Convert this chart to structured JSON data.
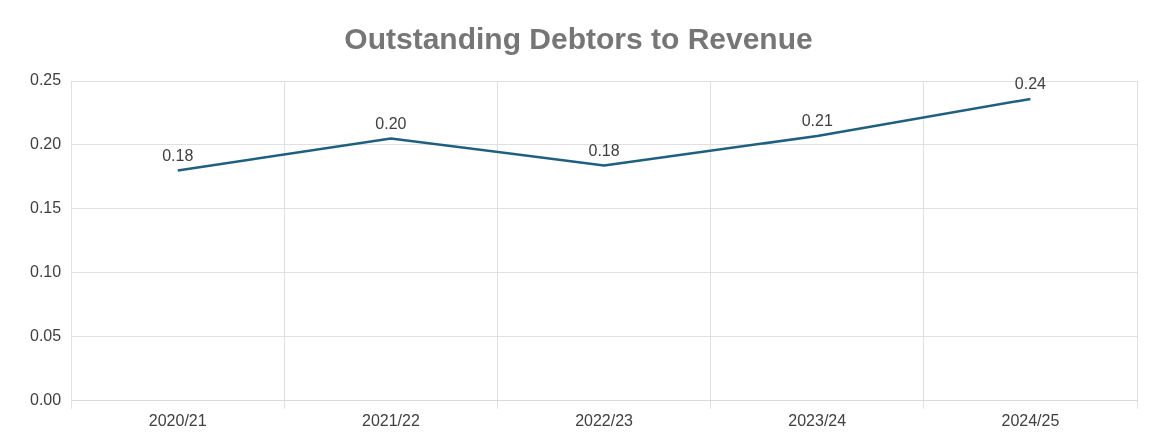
{
  "chart_data": {
    "type": "line",
    "title": "Outstanding Debtors to Revenue",
    "categories": [
      "2020/21",
      "2021/22",
      "2022/23",
      "2023/24",
      "2024/25"
    ],
    "series": [
      {
        "color": "#1f5f7f",
        "values": [
          0.18,
          0.205,
          0.184,
          0.207,
          0.236
        ],
        "value_labels": [
          "0.18",
          "0.20",
          "0.18",
          "0.21",
          "0.24"
        ]
      }
    ],
    "ylim": [
      0,
      0.25
    ],
    "yticks": [
      {
        "value": 0,
        "label": "0.00"
      },
      {
        "value": 0.05,
        "label": "0.05"
      },
      {
        "value": 0.1,
        "label": "0.10"
      },
      {
        "value": 0.15,
        "label": "0.15"
      },
      {
        "value": 0.2,
        "label": "0.20"
      },
      {
        "value": 0.25,
        "label": "0.25"
      }
    ],
    "grid": true,
    "legend": false,
    "marker": "none",
    "line_style": "solid"
  }
}
